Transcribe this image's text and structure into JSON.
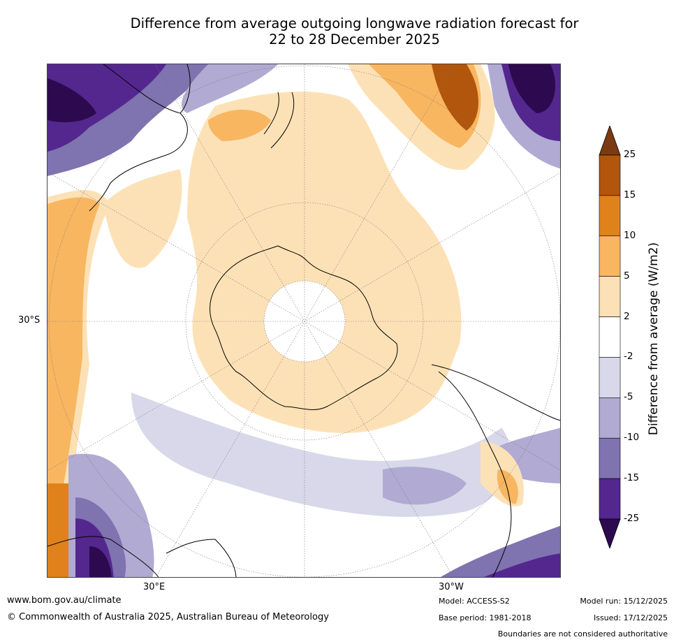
{
  "title": {
    "line1": "Difference from average outgoing longwave radiation forecast for",
    "line2": "22 to 28 December 2025"
  },
  "map": {
    "lat_label": "30°S",
    "lon_labels": {
      "east": "30°E",
      "west": "30°W"
    }
  },
  "legend": {
    "title": "Difference from average (W/m2)",
    "levels": [
      "25",
      "15",
      "10",
      "5",
      "2",
      "-2",
      "-5",
      "-10",
      "-15",
      "-25"
    ],
    "colors": [
      "#7b3a10",
      "#b1560c",
      "#e0821c",
      "#f8b661",
      "#fde1b6",
      "#ffffff",
      "#d8d8ea",
      "#b1aad2",
      "#7f73b0",
      "#54278f",
      "#2d0a4f"
    ]
  },
  "footer": {
    "website": "www.bom.gov.au/climate",
    "copyright": "© Commonwealth of Australia 2025, Australian Bureau of Meteorology",
    "model": "Model: ACCESS-S2",
    "base_period": "Base period: 1981-2018",
    "model_run": "Model run: 15/12/2025",
    "issued": "Issued: 17/12/2025",
    "disclaimer": "Boundaries are not considered authoritative"
  }
}
